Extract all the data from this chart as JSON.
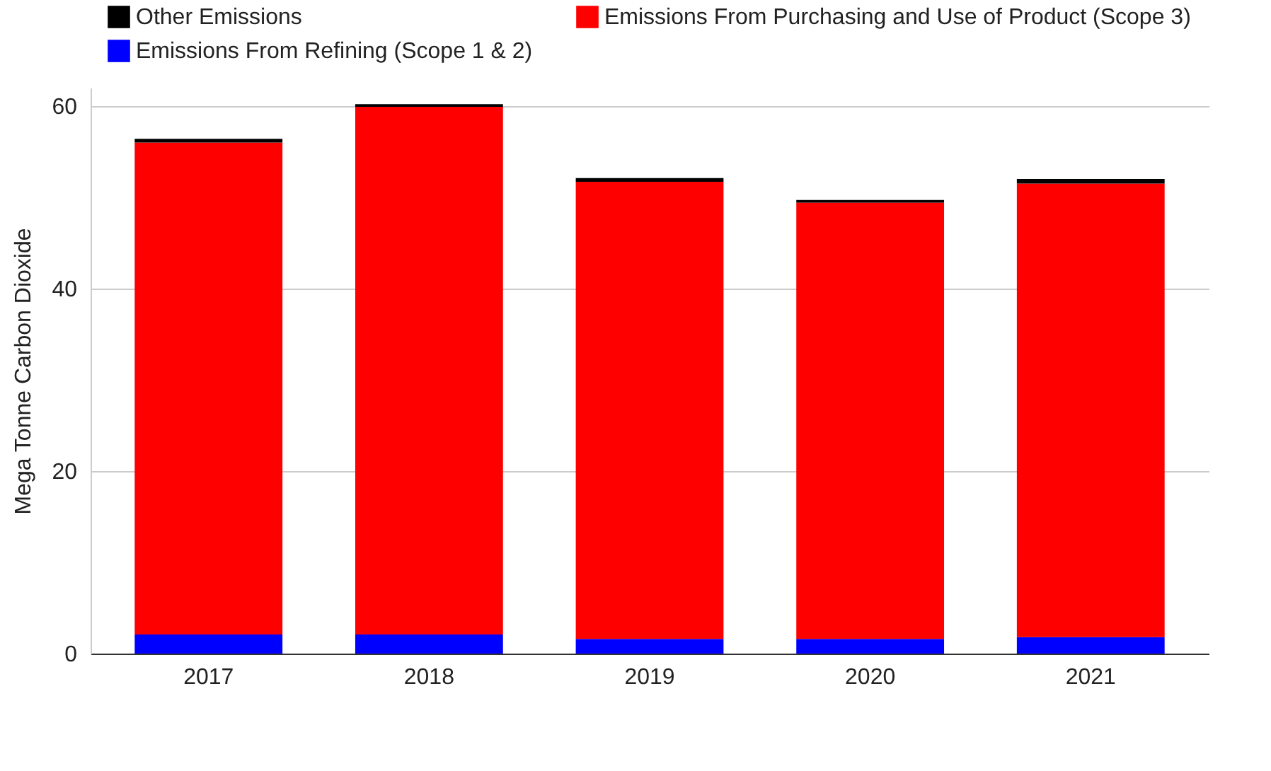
{
  "chart_data": {
    "type": "bar",
    "stacked": true,
    "ylabel": "Mega Tonne Carbon Dioxide",
    "categories": [
      "2017",
      "2018",
      "2019",
      "2020",
      "2021"
    ],
    "series": [
      {
        "name": "Emissions From Refining (Scope 1 & 2)",
        "color": "#0000ff",
        "values": [
          2.1,
          2.1,
          1.6,
          1.6,
          1.8
        ]
      },
      {
        "name": "Emissions From Purchasing and Use of Product (Scope 3)",
        "color": "#ff0000",
        "values": [
          53.9,
          57.8,
          50.1,
          47.8,
          49.7
        ]
      },
      {
        "name": "Other Emissions",
        "color": "#000000",
        "values": [
          0.4,
          0.3,
          0.4,
          0.3,
          0.5
        ]
      }
    ],
    "ylim": [
      0,
      62
    ],
    "yticks": [
      0,
      20,
      40,
      60
    ],
    "grid": "y",
    "legend": "top"
  }
}
